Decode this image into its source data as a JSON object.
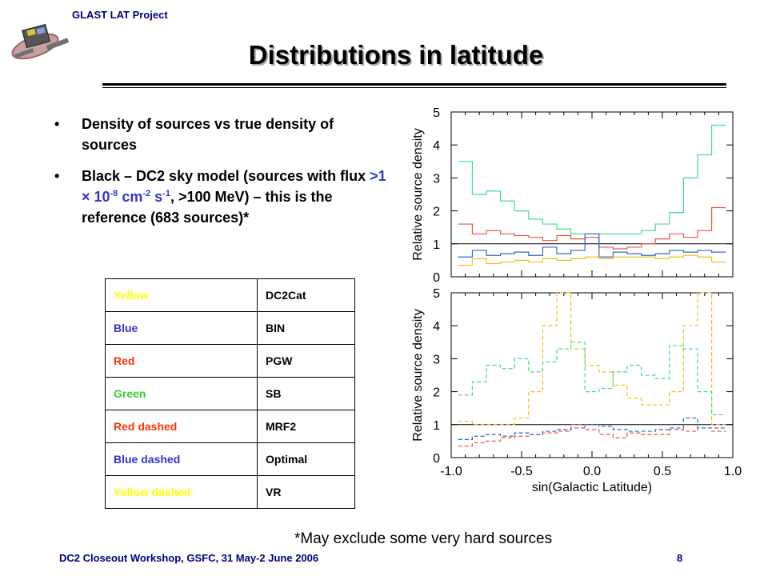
{
  "header": {
    "project": "GLAST LAT Project",
    "title": "Distributions in latitude"
  },
  "bullets": [
    {
      "marker": "•",
      "text": "Density of sources vs true density of sources"
    },
    {
      "marker": "•",
      "pre": "Black – DC2 sky model (sources with flux ",
      "flux_a": ">1 × 10",
      "exp1": "-8",
      "flux_b": " cm",
      "exp2": "-2",
      "flux_c": " s",
      "exp3": "-1",
      "post": ", >100 MeV) – this is the reference (683 sources)*"
    }
  ],
  "legend_table": [
    {
      "label": "Yellow",
      "name": "DC2Cat",
      "color": "#ffff00"
    },
    {
      "label": "Blue",
      "name": "BIN",
      "color": "#3333cc"
    },
    {
      "label": "Red",
      "name": "PGW",
      "color": "#ff3300"
    },
    {
      "label": "Green",
      "name": "SB",
      "color": "#33cc33"
    },
    {
      "label": "Red dashed",
      "name": "MRF2",
      "color": "#ff3300"
    },
    {
      "label": "Blue dashed",
      "name": "Optimal",
      "color": "#3333cc"
    },
    {
      "label": "Yellow dashed",
      "name": "VR",
      "color": "#ffff00"
    }
  ],
  "footnote": "*May exclude some very hard sources",
  "footer": {
    "left": "DC2 Closeout Workshop, GSFC, 31 May-2 June 2006",
    "page": "8"
  },
  "chart_data": {
    "type": "line",
    "panels": [
      {
        "ylabel": "Relative source density",
        "ylim": [
          0,
          5
        ],
        "yticks": [
          "0",
          "1",
          "2",
          "3",
          "4",
          "5"
        ],
        "xlim": [
          -1.0,
          1.0
        ],
        "reference_line": 1,
        "series": [
          {
            "color": "#44dd88",
            "dash": false,
            "x": [
              -0.9,
              -0.8,
              -0.7,
              -0.6,
              -0.5,
              -0.4,
              -0.3,
              -0.2,
              -0.1,
              0.0,
              0.1,
              0.2,
              0.3,
              0.4,
              0.5,
              0.6,
              0.7,
              0.8,
              0.9
            ],
            "values": [
              3.5,
              2.5,
              2.6,
              2.3,
              2.0,
              1.75,
              1.6,
              1.45,
              1.3,
              1.3,
              1.3,
              1.3,
              1.3,
              1.4,
              1.6,
              1.95,
              3.0,
              3.7,
              4.6
            ]
          },
          {
            "color": "#ee5544",
            "dash": false,
            "x": [
              -0.9,
              -0.8,
              -0.7,
              -0.6,
              -0.5,
              -0.4,
              -0.3,
              -0.2,
              -0.1,
              0.0,
              0.1,
              0.2,
              0.3,
              0.4,
              0.5,
              0.6,
              0.7,
              0.8,
              0.9
            ],
            "values": [
              1.6,
              1.3,
              1.4,
              1.3,
              1.25,
              1.2,
              1.1,
              1.25,
              1.15,
              1.2,
              0.9,
              0.85,
              0.9,
              1.0,
              1.15,
              1.3,
              1.2,
              1.4,
              2.1
            ]
          },
          {
            "color": "#3366cc",
            "dash": false,
            "x": [
              -0.9,
              -0.8,
              -0.7,
              -0.6,
              -0.5,
              -0.4,
              -0.3,
              -0.2,
              -0.1,
              0.0,
              0.1,
              0.2,
              0.3,
              0.4,
              0.5,
              0.6,
              0.7,
              0.8,
              0.9
            ],
            "values": [
              0.6,
              0.8,
              0.65,
              0.7,
              0.75,
              0.65,
              0.9,
              0.7,
              0.8,
              1.3,
              0.6,
              0.75,
              0.7,
              0.65,
              0.7,
              0.8,
              0.75,
              0.8,
              0.75
            ]
          },
          {
            "color": "#f0c020",
            "dash": false,
            "x": [
              -0.9,
              -0.8,
              -0.7,
              -0.6,
              -0.5,
              -0.4,
              -0.3,
              -0.2,
              -0.1,
              0.0,
              0.1,
              0.2,
              0.3,
              0.4,
              0.5,
              0.6,
              0.7,
              0.8,
              0.9
            ],
            "values": [
              0.35,
              0.55,
              0.4,
              0.45,
              0.5,
              0.45,
              0.55,
              0.5,
              0.55,
              0.6,
              0.55,
              0.6,
              0.6,
              0.6,
              0.55,
              0.6,
              0.65,
              0.6,
              0.45
            ]
          }
        ]
      },
      {
        "ylabel": "Relative source density",
        "xlabel": "sin(Galactic Latitude)",
        "ylim": [
          0,
          5
        ],
        "yticks": [
          "0",
          "1",
          "2",
          "3",
          "4",
          "5"
        ],
        "xlim": [
          -1.0,
          1.0
        ],
        "xticks": [
          "-1.0",
          "-0.5",
          "0.0",
          "0.5",
          "1.0"
        ],
        "reference_line": 1,
        "series": [
          {
            "color": "#f0c020",
            "dash": true,
            "x": [
              -0.9,
              -0.8,
              -0.7,
              -0.6,
              -0.5,
              -0.4,
              -0.3,
              -0.2,
              -0.1,
              0.0,
              0.1,
              0.2,
              0.3,
              0.4,
              0.5,
              0.6,
              0.7,
              0.8,
              0.9
            ],
            "values": [
              1.1,
              1.0,
              1.0,
              1.0,
              1.2,
              2.0,
              4.0,
              5.0,
              3.3,
              2.8,
              2.6,
              2.2,
              1.8,
              1.6,
              1.6,
              2.0,
              4.0,
              5.0,
              1.0
            ]
          },
          {
            "color": "#44dd88",
            "dash": true,
            "x": [
              -0.9,
              -0.8,
              -0.7,
              -0.6,
              -0.5,
              -0.4,
              -0.3,
              -0.2,
              -0.1,
              0.0,
              0.1,
              0.2,
              0.3,
              0.4,
              0.5,
              0.6,
              0.7,
              0.8,
              0.9
            ],
            "values": [
              1.9,
              2.3,
              2.8,
              2.7,
              3.0,
              2.6,
              2.9,
              3.3,
              3.5,
              2.0,
              2.1,
              2.6,
              2.8,
              2.5,
              2.4,
              3.4,
              3.3,
              2.0,
              1.3
            ]
          },
          {
            "color": "#ee5544",
            "dash": true,
            "x": [
              -0.9,
              -0.8,
              -0.7,
              -0.6,
              -0.5,
              -0.4,
              -0.3,
              -0.2,
              -0.1,
              0.0,
              0.1,
              0.2,
              0.3,
              0.4,
              0.5,
              0.6,
              0.7,
              0.8,
              0.9
            ],
            "values": [
              0.35,
              0.45,
              0.5,
              0.6,
              0.65,
              0.7,
              0.75,
              0.8,
              1.0,
              0.85,
              0.7,
              0.6,
              0.75,
              0.7,
              0.7,
              0.85,
              0.8,
              0.9,
              0.8
            ]
          },
          {
            "color": "#3366cc",
            "dash": true,
            "x": [
              -0.9,
              -0.8,
              -0.7,
              -0.6,
              -0.5,
              -0.4,
              -0.3,
              -0.2,
              -0.1,
              0.0,
              0.1,
              0.2,
              0.3,
              0.4,
              0.5,
              0.6,
              0.7,
              0.8,
              0.9
            ],
            "values": [
              0.55,
              0.65,
              0.7,
              0.65,
              0.75,
              0.7,
              0.8,
              0.85,
              0.9,
              1.0,
              0.95,
              0.85,
              0.8,
              0.8,
              0.85,
              0.9,
              1.2,
              0.9,
              0.9
            ]
          }
        ]
      }
    ]
  }
}
